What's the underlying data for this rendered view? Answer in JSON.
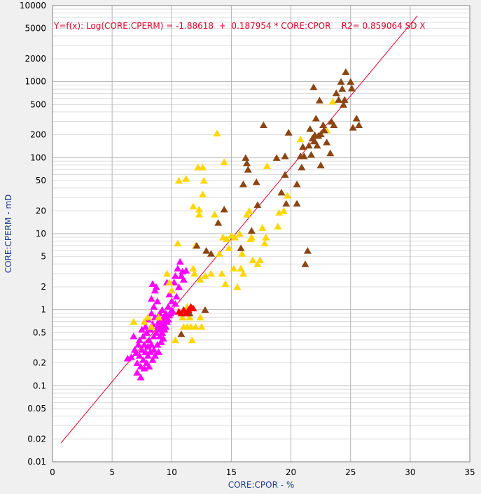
{
  "chart_data": {
    "type": "scatter",
    "xlabel": "CORE:CPOR - %",
    "ylabel": "CORE:CPERM - mD",
    "xlim": [
      0,
      35
    ],
    "ylim": [
      0.01,
      10000
    ],
    "y_scale": "log",
    "grid": true,
    "x_ticks": [
      "0",
      "5",
      "10",
      "15",
      "20",
      "25",
      "30",
      "35"
    ],
    "y_ticks": [
      {
        "value": 10000,
        "label": "10000"
      },
      {
        "value": 5000,
        "label": "5000"
      },
      {
        "value": 2000,
        "label": "2000"
      },
      {
        "value": 1000,
        "label": "1000"
      },
      {
        "value": 500,
        "label": "500"
      },
      {
        "value": 200,
        "label": "200"
      },
      {
        "value": 100,
        "label": "100"
      },
      {
        "value": 50,
        "label": "50"
      },
      {
        "value": 20,
        "label": "20"
      },
      {
        "value": 10,
        "label": "10"
      },
      {
        "value": 5,
        "label": "5"
      },
      {
        "value": 2,
        "label": "2"
      },
      {
        "value": 1,
        "label": "1"
      },
      {
        "value": 0.5,
        "label": "0.5"
      },
      {
        "value": 0.2,
        "label": "0.2"
      },
      {
        "value": 0.1,
        "label": "0.1"
      },
      {
        "value": 0.05,
        "label": "0.05"
      },
      {
        "value": 0.02,
        "label": "0.02"
      },
      {
        "value": 0.01,
        "label": "0.01"
      }
    ],
    "annotation": "Y=f(x): Log(CORE:CPERM) = -1.88618  +  0.187954 * CORE:CPOR    R2= 0.859064 SD X",
    "fit_line": {
      "color": "#e0002a",
      "intercept": -1.88618,
      "slope": 0.187954,
      "x_range": [
        0.7,
        30.6
      ]
    },
    "series": [
      {
        "color": "#ff00ff",
        "points": [
          [
            6.3,
            0.23
          ],
          [
            6.6,
            0.24
          ],
          [
            6.8,
            0.45
          ],
          [
            6.9,
            0.3
          ],
          [
            7.0,
            0.27
          ],
          [
            7.1,
            0.2
          ],
          [
            7.1,
            0.15
          ],
          [
            7.2,
            0.35
          ],
          [
            7.3,
            0.4
          ],
          [
            7.3,
            0.25
          ],
          [
            7.4,
            0.18
          ],
          [
            7.4,
            0.13
          ],
          [
            7.5,
            0.3
          ],
          [
            7.5,
            0.55
          ],
          [
            7.6,
            0.22
          ],
          [
            7.6,
            0.45
          ],
          [
            7.7,
            0.17
          ],
          [
            7.7,
            0.35
          ],
          [
            7.8,
            0.28
          ],
          [
            7.8,
            0.6
          ],
          [
            7.9,
            0.2
          ],
          [
            7.9,
            0.5
          ],
          [
            8.0,
            0.25
          ],
          [
            8.0,
            0.33
          ],
          [
            8.0,
            0.75
          ],
          [
            8.1,
            0.4
          ],
          [
            8.1,
            0.18
          ],
          [
            8.2,
            0.55
          ],
          [
            8.2,
            0.28
          ],
          [
            8.3,
            0.9
          ],
          [
            8.3,
            0.35
          ],
          [
            8.3,
            1.4
          ],
          [
            8.4,
            0.22
          ],
          [
            8.4,
            0.65
          ],
          [
            8.4,
            2.2
          ],
          [
            8.5,
            0.45
          ],
          [
            8.5,
            1.1
          ],
          [
            8.5,
            0.3
          ],
          [
            8.6,
            0.8
          ],
          [
            8.6,
            1.8
          ],
          [
            8.6,
            0.25
          ],
          [
            8.7,
            0.5
          ],
          [
            8.7,
            2.0
          ],
          [
            8.8,
            0.6
          ],
          [
            8.8,
            0.35
          ],
          [
            8.8,
            1.3
          ],
          [
            8.9,
            0.7
          ],
          [
            8.9,
            0.28
          ],
          [
            9.0,
            0.9
          ],
          [
            9.0,
            0.45
          ],
          [
            9.0,
            0.55
          ],
          [
            9.1,
            0.6
          ],
          [
            9.1,
            0.38
          ],
          [
            9.2,
            0.75
          ],
          [
            9.2,
            1.0
          ],
          [
            9.2,
            0.5
          ],
          [
            9.3,
            0.65
          ],
          [
            9.3,
            0.42
          ],
          [
            9.4,
            0.8
          ],
          [
            9.4,
            0.55
          ],
          [
            9.5,
            0.6
          ],
          [
            9.5,
            0.9
          ],
          [
            9.6,
            0.7
          ],
          [
            9.6,
            2.3
          ],
          [
            9.7,
            0.75
          ],
          [
            9.7,
            1.1
          ],
          [
            9.8,
            0.85
          ],
          [
            9.8,
            1.6
          ],
          [
            9.9,
            0.9
          ],
          [
            10.0,
            1.0
          ],
          [
            10.0,
            1.3
          ],
          [
            10.1,
            0.95
          ],
          [
            10.2,
            2.3
          ],
          [
            10.3,
            1.2
          ],
          [
            10.4,
            1.5
          ],
          [
            10.5,
            3.5
          ],
          [
            10.6,
            2.0
          ],
          [
            10.7,
            4.3
          ],
          [
            10.8,
            2.8
          ],
          [
            10.9,
            3.2
          ],
          [
            11.0,
            2.5
          ],
          [
            11.2,
            3.3
          ],
          [
            10.3,
            2.8
          ]
        ]
      },
      {
        "color": "#ffd700",
        "points": [
          [
            6.8,
            0.7
          ],
          [
            7.7,
            0.7
          ],
          [
            8.0,
            0.8
          ],
          [
            8.3,
            0.6
          ],
          [
            8.9,
            0.8
          ],
          [
            9.6,
            3.0
          ],
          [
            9.8,
            2.3
          ],
          [
            10.0,
            1.8
          ],
          [
            10.3,
            0.4
          ],
          [
            10.5,
            7.5
          ],
          [
            10.6,
            50
          ],
          [
            10.9,
            0.8
          ],
          [
            11.0,
            0.6
          ],
          [
            11.2,
            53
          ],
          [
            11.3,
            0.6
          ],
          [
            11.3,
            1.1
          ],
          [
            11.5,
            0.8
          ],
          [
            11.6,
            0.6
          ],
          [
            11.7,
            0.4
          ],
          [
            11.8,
            23
          ],
          [
            11.8,
            3.5
          ],
          [
            11.9,
            3.0
          ],
          [
            12.0,
            7.0
          ],
          [
            12.0,
            0.6
          ],
          [
            12.2,
            75
          ],
          [
            12.3,
            18
          ],
          [
            12.3,
            21
          ],
          [
            12.4,
            2.5
          ],
          [
            12.4,
            0.8
          ],
          [
            12.5,
            0.6
          ],
          [
            12.6,
            75
          ],
          [
            12.6,
            33
          ],
          [
            12.7,
            50
          ],
          [
            12.8,
            2.8
          ],
          [
            13.3,
            3.0
          ],
          [
            13.6,
            18
          ],
          [
            13.8,
            210
          ],
          [
            14.0,
            5.5
          ],
          [
            14.2,
            3.0
          ],
          [
            14.3,
            9.0
          ],
          [
            14.4,
            88
          ],
          [
            14.5,
            2.2
          ],
          [
            14.6,
            8.5
          ],
          [
            14.8,
            6.5
          ],
          [
            15.0,
            9.5
          ],
          [
            15.2,
            3.5
          ],
          [
            15.3,
            9.0
          ],
          [
            15.5,
            2.0
          ],
          [
            15.7,
            10
          ],
          [
            15.8,
            3.5
          ],
          [
            15.9,
            5.5
          ],
          [
            16.0,
            3.0
          ],
          [
            16.3,
            18
          ],
          [
            16.5,
            20
          ],
          [
            16.6,
            8.5
          ],
          [
            16.7,
            9.0
          ],
          [
            16.8,
            4.5
          ],
          [
            17.2,
            4.0
          ],
          [
            17.4,
            4.5
          ],
          [
            17.6,
            12
          ],
          [
            17.8,
            7.5
          ],
          [
            17.9,
            9.0
          ],
          [
            18.0,
            78
          ],
          [
            18.9,
            12.5
          ],
          [
            19.0,
            19
          ],
          [
            19.4,
            20
          ],
          [
            19.7,
            32
          ],
          [
            20.8,
            175
          ],
          [
            23.0,
            230
          ],
          [
            23.5,
            550
          ]
        ]
      },
      {
        "color": "#8b4513",
        "points": [
          [
            10.8,
            0.48
          ],
          [
            11.5,
            0.9
          ],
          [
            12.1,
            7.0
          ],
          [
            12.8,
            1.0
          ],
          [
            12.9,
            6.0
          ],
          [
            13.3,
            5.5
          ],
          [
            13.9,
            14
          ],
          [
            14.4,
            21
          ],
          [
            15.8,
            6.5
          ],
          [
            16.0,
            45
          ],
          [
            16.2,
            100
          ],
          [
            16.3,
            85
          ],
          [
            16.4,
            70
          ],
          [
            16.7,
            11
          ],
          [
            17.1,
            48
          ],
          [
            17.2,
            24
          ],
          [
            17.7,
            270
          ],
          [
            18.8,
            100
          ],
          [
            19.2,
            35
          ],
          [
            19.5,
            105
          ],
          [
            19.5,
            60
          ],
          [
            19.6,
            25
          ],
          [
            19.8,
            215
          ],
          [
            20.5,
            25
          ],
          [
            20.5,
            45
          ],
          [
            20.8,
            105
          ],
          [
            20.9,
            75
          ],
          [
            21.0,
            140
          ],
          [
            21.1,
            105
          ],
          [
            21.2,
            4.0
          ],
          [
            21.4,
            6.0
          ],
          [
            21.5,
            145
          ],
          [
            21.6,
            240
          ],
          [
            21.7,
            110
          ],
          [
            21.8,
            180
          ],
          [
            21.9,
            850
          ],
          [
            22.0,
            200
          ],
          [
            22.0,
            165
          ],
          [
            22.1,
            330
          ],
          [
            22.2,
            145
          ],
          [
            22.3,
            195
          ],
          [
            22.4,
            570
          ],
          [
            22.5,
            205
          ],
          [
            22.5,
            80
          ],
          [
            22.7,
            270
          ],
          [
            22.8,
            230
          ],
          [
            23.0,
            160
          ],
          [
            23.3,
            115
          ],
          [
            23.4,
            300
          ],
          [
            23.6,
            270
          ],
          [
            23.8,
            710
          ],
          [
            24.0,
            580
          ],
          [
            24.2,
            1000
          ],
          [
            24.3,
            810
          ],
          [
            24.4,
            500
          ],
          [
            24.5,
            580
          ],
          [
            24.6,
            1350
          ],
          [
            25.0,
            1000
          ],
          [
            25.1,
            820
          ],
          [
            25.2,
            250
          ],
          [
            25.5,
            330
          ],
          [
            25.7,
            270
          ]
        ]
      },
      {
        "color": "#ff0000",
        "points": [
          [
            10.6,
            0.95
          ],
          [
            10.8,
            0.9
          ],
          [
            11.0,
            1.0
          ],
          [
            11.2,
            0.9
          ],
          [
            11.4,
            1.0
          ],
          [
            11.6,
            1.1
          ],
          [
            11.8,
            1.05
          ]
        ]
      }
    ]
  }
}
